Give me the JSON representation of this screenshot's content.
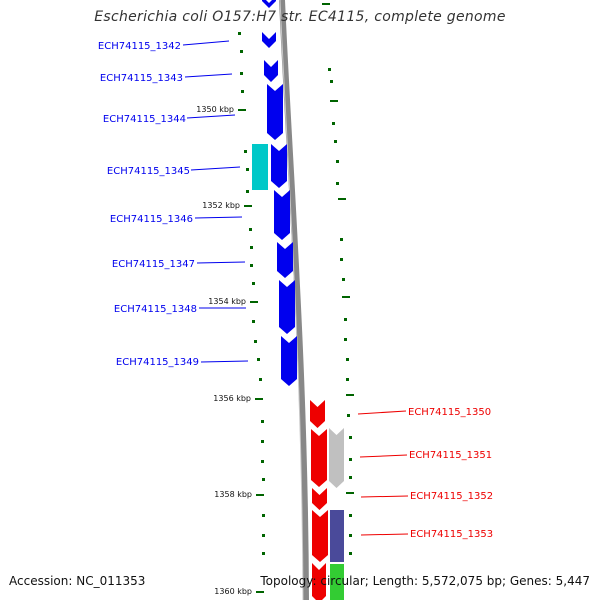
{
  "title": "Escherichia coli O157:H7 str. EC4115, complete genome",
  "accession": "Accession: NC_011353",
  "summary": "Topology: circular; Length: 5,572,075 bp; Genes: 5,447",
  "colors": {
    "forward_gene": "#0000ee",
    "reverse_gene": "#ee0000",
    "backbone": "#888888",
    "tick": "#006400",
    "teal_feature": "#00c8c8",
    "grey_feature": "#c0c0c0",
    "purple_feature": "#4a4a9a",
    "green_feature": "#33cc33"
  },
  "position_ticks": [
    "1350 kbp",
    "1352 kbp",
    "1354 kbp",
    "1356 kbp",
    "1358 kbp",
    "1360 kbp"
  ],
  "forward_genes": [
    "ECH74115_1342",
    "ECH74115_1343",
    "ECH74115_1344",
    "ECH74115_1345",
    "ECH74115_1346",
    "ECH74115_1347",
    "ECH74115_1348",
    "ECH74115_1349"
  ],
  "reverse_genes": [
    "ECH74115_1350",
    "ECH74115_1351",
    "ECH74115_1352",
    "ECH74115_1353"
  ]
}
